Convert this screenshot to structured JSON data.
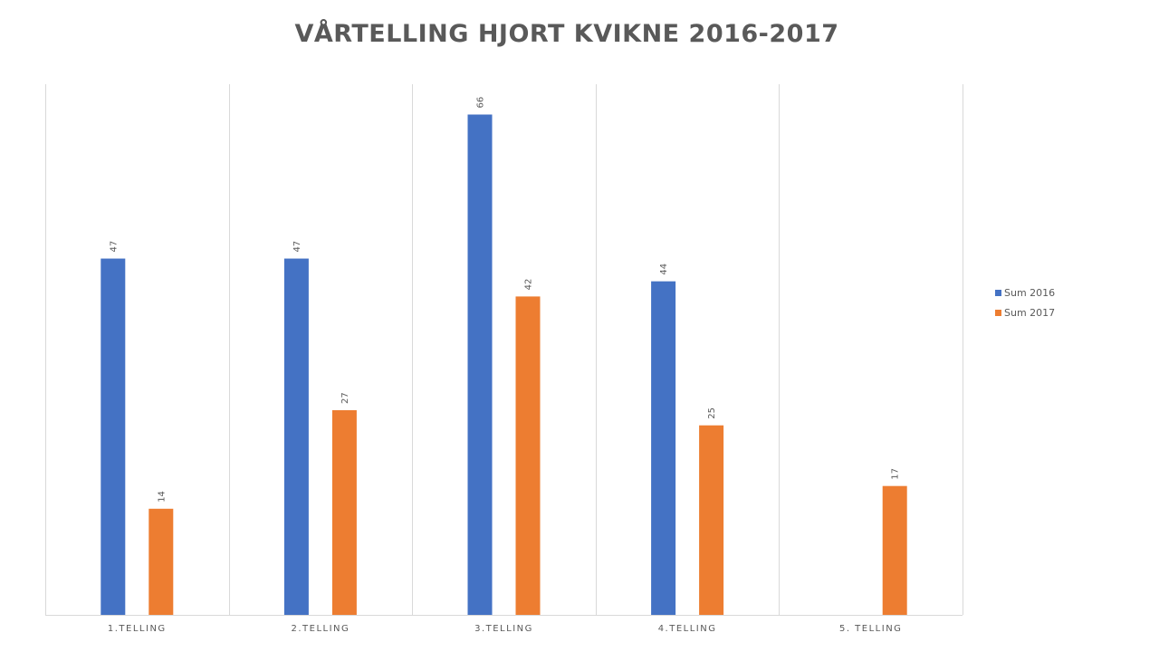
{
  "chart_data": {
    "type": "bar",
    "title": "VÅRTELLING HJORT KVIKNE 2016-2017",
    "categories": [
      "1.TELLING",
      "2.TELLING",
      "3.TELLING",
      "4.TELLING",
      "5. TELLING"
    ],
    "series": [
      {
        "name": "Sum 2016",
        "color": "#4472C4",
        "values": [
          47,
          47,
          66,
          44,
          null
        ]
      },
      {
        "name": "Sum 2017",
        "color": "#ED7D31",
        "values": [
          14,
          27,
          42,
          25,
          17
        ]
      }
    ],
    "ylim": [
      0,
      70
    ],
    "grid": {
      "vertical": true,
      "horizontal": false
    },
    "legend": "right",
    "data_labels": true
  }
}
